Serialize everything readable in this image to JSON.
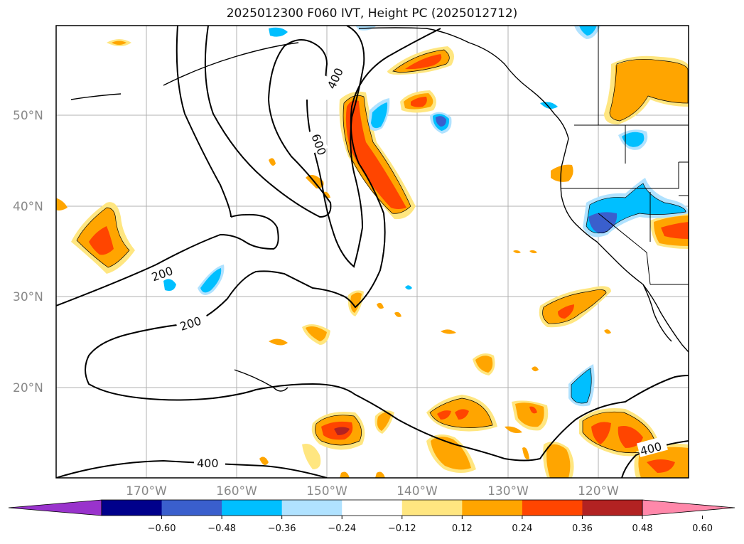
{
  "title": "2025012300 F060 IVT, Height PC (2025012712)",
  "map": {
    "lat_labels": [
      "50°N",
      "40°N",
      "30°N",
      "20°N"
    ],
    "lon_labels": [
      "170°W",
      "160°W",
      "150°W",
      "140°W",
      "130°W",
      "120°W"
    ],
    "contour_labels": [
      "400",
      "600",
      "200",
      "200",
      "400",
      "400"
    ],
    "gridlines": true
  },
  "colorbar": {
    "ticks": [
      "−0.60",
      "−0.48",
      "−0.36",
      "−0.24",
      "−0.12",
      "0.12",
      "0.24",
      "0.36",
      "0.48",
      "0.60"
    ],
    "colors": [
      "#9933cc",
      "#00008b",
      "#3a5fcd",
      "#00bfff",
      "#b0e2ff",
      "#ffffff",
      "#ffe680",
      "#ffa500",
      "#ff4500",
      "#b22222",
      "#ff88aa"
    ]
  }
}
